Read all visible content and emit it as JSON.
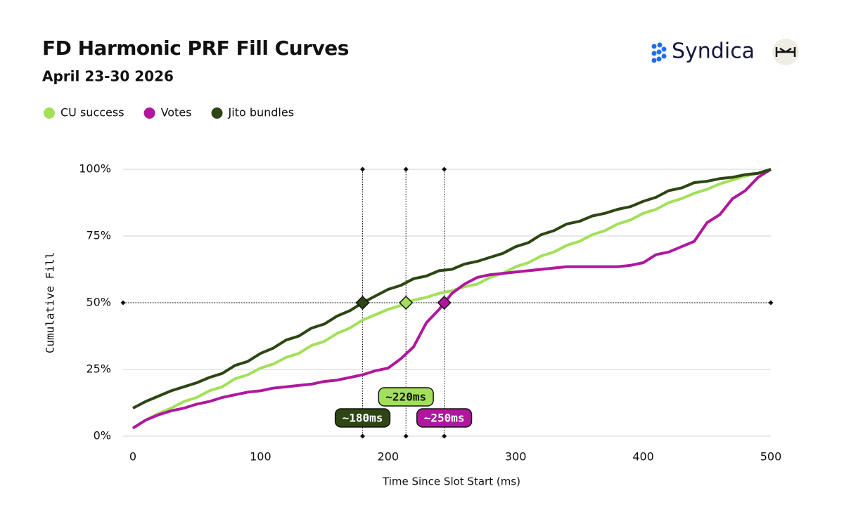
{
  "brand": "Syndica",
  "chart_data": {
    "type": "line",
    "title": "FD Harmonic PRF Fill Curves",
    "subtitle": "April 23-30 2026",
    "x_label": "Time Since Slot Start (ms)",
    "y_label": "Cumulative Fill",
    "x": [
      0,
      10,
      20,
      30,
      40,
      50,
      60,
      70,
      80,
      90,
      100,
      110,
      120,
      130,
      140,
      150,
      160,
      170,
      180,
      190,
      200,
      210,
      220,
      230,
      240,
      250,
      260,
      270,
      280,
      290,
      300,
      310,
      320,
      330,
      340,
      350,
      360,
      370,
      380,
      390,
      400,
      410,
      420,
      430,
      440,
      450,
      460,
      470,
      480,
      490,
      500
    ],
    "series": [
      {
        "name": "CU success",
        "color": "#a3e05a",
        "values": [
          3,
          6,
          8.5,
          10.5,
          13,
          14.5,
          17,
          18.5,
          21.5,
          23,
          25.5,
          27,
          29.5,
          31,
          34,
          35.5,
          38.5,
          40.5,
          43.5,
          45.5,
          47.5,
          49,
          51,
          52,
          53.5,
          54.5,
          56,
          57,
          59.5,
          61,
          63.5,
          65,
          67.5,
          69,
          71.5,
          73,
          75.5,
          77,
          79.5,
          81,
          83.5,
          85,
          87.5,
          89,
          91,
          92.5,
          94.5,
          96,
          97.5,
          98.5,
          100
        ]
      },
      {
        "name": "Votes",
        "color": "#b0179e",
        "values": [
          3,
          6,
          8,
          9.5,
          10.5,
          12,
          13,
          14.5,
          15.5,
          16.5,
          17,
          18,
          18.5,
          19,
          19.5,
          20.5,
          21,
          22,
          23,
          24.5,
          25.5,
          29,
          33.5,
          42.5,
          47.5,
          53.5,
          57,
          59.5,
          60.5,
          61,
          61.5,
          62,
          62.5,
          63,
          63.5,
          63.5,
          63.5,
          63.5,
          63.5,
          64,
          65,
          68,
          69,
          71,
          73,
          80,
          83,
          89,
          92,
          97,
          100
        ]
      },
      {
        "name": "Jito bundles",
        "color": "#2d4613",
        "values": [
          10.5,
          13,
          15,
          17,
          18.5,
          20,
          22,
          23.5,
          26.5,
          28,
          31,
          33,
          36,
          37.5,
          40.5,
          42,
          45,
          47,
          50,
          52.5,
          55,
          56.5,
          59,
          60,
          62,
          62.5,
          64.5,
          65.5,
          67,
          68.5,
          71,
          72.5,
          75.5,
          77,
          79.5,
          80.5,
          82.5,
          83.5,
          85,
          86,
          88,
          89.5,
          92,
          93,
          95,
          95.5,
          96.5,
          97,
          98,
          98.5,
          100
        ]
      }
    ],
    "annotations": [
      {
        "label": "~180ms",
        "x": 180,
        "y": 50,
        "color": "#2d4613"
      },
      {
        "label": "~220ms",
        "x": 214,
        "y": 50,
        "color": "#a3e05a"
      },
      {
        "label": "~250ms",
        "x": 244,
        "y": 50,
        "color": "#b0179e"
      }
    ],
    "xlim": [
      0,
      500
    ],
    "xticks": [
      0,
      100,
      200,
      300,
      400,
      500
    ],
    "ylim": [
      0,
      100
    ],
    "yticks": [
      {
        "value": 0,
        "label": "0%"
      },
      {
        "value": 25,
        "label": "25%"
      },
      {
        "value": 50,
        "label": "50%"
      },
      {
        "value": 75,
        "label": "75%"
      },
      {
        "value": 100,
        "label": "100%"
      }
    ],
    "grid": true
  }
}
